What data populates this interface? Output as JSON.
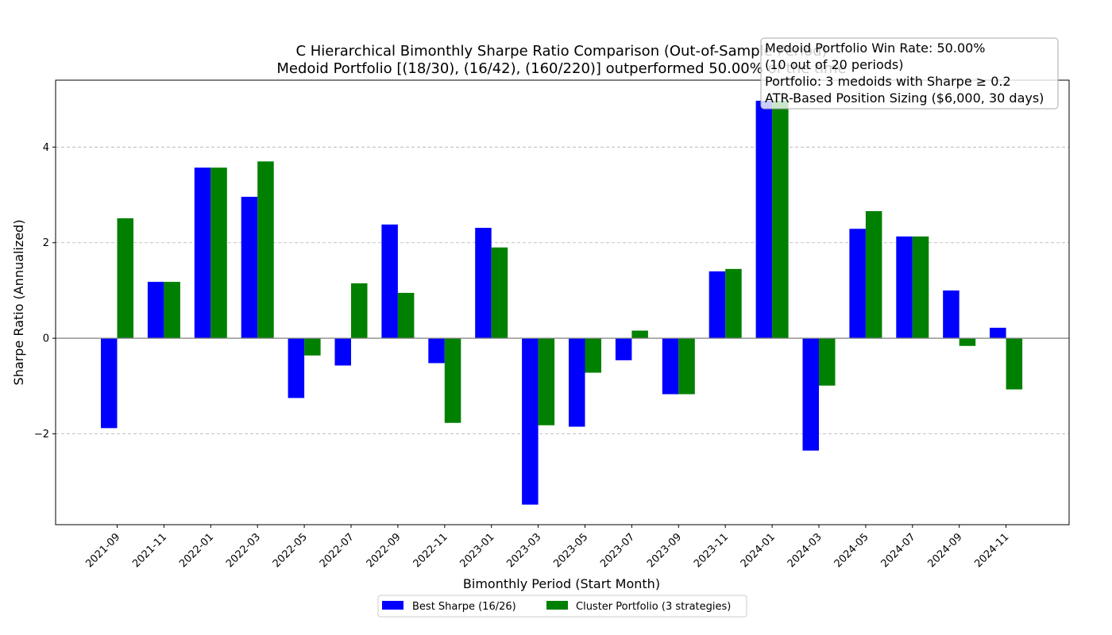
{
  "chart_data": {
    "type": "bar",
    "title": "C Hierarchical Bimonthly Sharpe Ratio Comparison (Out-of-Sample Period)",
    "subtitle": "Medoid Portfolio [(18/30), (16/42), (160/220)] outperformed 50.00% of the time",
    "xlabel": "Bimonthly Period (Start Month)",
    "ylabel": "Sharpe Ratio (Annualized)",
    "ylim": [
      -3.9,
      5.4
    ],
    "yticks": [
      -2,
      0,
      2,
      4
    ],
    "grid": "horizontal dashed",
    "legend_position": "bottom-center",
    "categories": [
      "2021-09",
      "2021-11",
      "2022-01",
      "2022-03",
      "2022-05",
      "2022-07",
      "2022-09",
      "2022-11",
      "2023-01",
      "2023-03",
      "2023-05",
      "2023-07",
      "2023-09",
      "2023-11",
      "2024-01",
      "2024-03",
      "2024-05",
      "2024-07",
      "2024-09",
      "2024-11"
    ],
    "series": [
      {
        "name": "Best Sharpe (16/26)",
        "color": "#0000ff",
        "values": [
          -1.88,
          1.18,
          3.57,
          2.96,
          -1.25,
          -0.57,
          2.38,
          -0.52,
          2.31,
          -3.48,
          -1.85,
          -0.46,
          -1.17,
          1.4,
          4.97,
          -2.35,
          2.29,
          2.13,
          1.0,
          0.22
        ]
      },
      {
        "name": "Cluster Portfolio (3 strategies)",
        "color": "#008000",
        "values": [
          2.51,
          1.18,
          3.57,
          3.7,
          -0.36,
          1.15,
          0.95,
          -1.77,
          1.9,
          -1.82,
          -0.72,
          0.16,
          -1.17,
          1.45,
          4.97,
          -0.99,
          2.66,
          2.13,
          -0.16,
          -1.07
        ]
      }
    ],
    "annotation_lines": [
      "Medoid Portfolio Win Rate: 50.00%",
      "(10 out of 20 periods)",
      "Portfolio: 3 medoids with Sharpe ≥ 0.2",
      "ATR-Based Position Sizing ($6,000, 30 days)"
    ]
  }
}
